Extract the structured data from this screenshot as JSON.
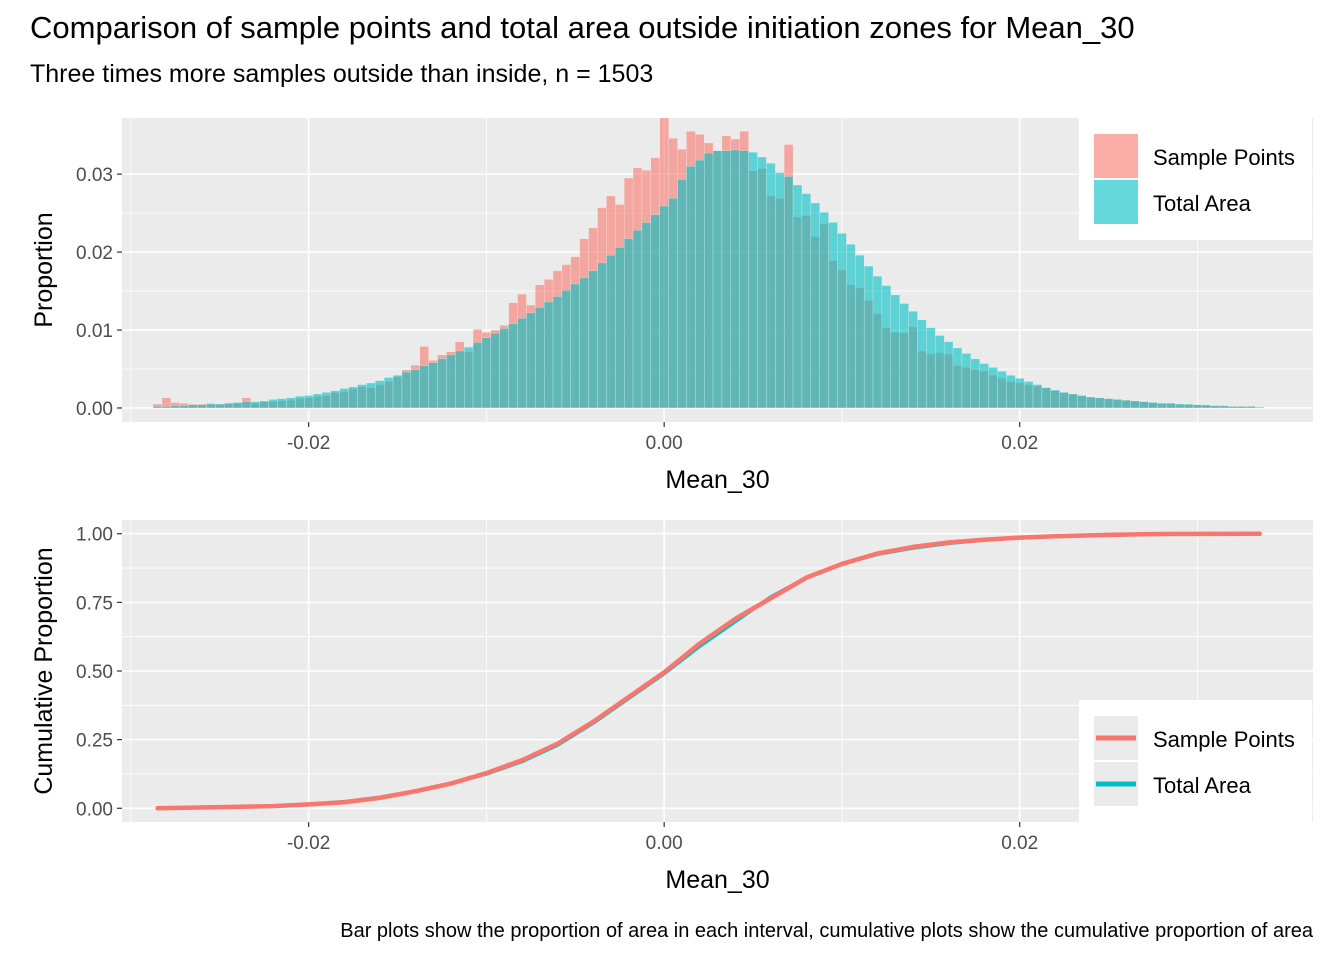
{
  "title": "Comparison of sample points and total area outside initiation zones for Mean_30",
  "subtitle": "Three times more samples outside than inside, n = 1503",
  "caption": "Bar plots show the proportion of area in each interval, cumulative plots show the cumulative proportion of area",
  "colors": {
    "sample": "#F8766D",
    "total": "#00BFC4",
    "panel": "#EBEBEB",
    "grid": "#FFFFFF"
  },
  "chart_data": [
    {
      "type": "bar",
      "xlabel": "Mean_30",
      "ylabel": "Proportion",
      "xlim": [
        -0.0305,
        0.0365
      ],
      "ylim": [
        -0.0018,
        0.0372
      ],
      "x_ticks": [
        -0.02,
        0.0,
        0.02
      ],
      "x_tick_labels": [
        "-0.02",
        "0.00",
        "0.02"
      ],
      "y_ticks": [
        0.0,
        0.01,
        0.02,
        0.03
      ],
      "y_tick_labels": [
        "0.00",
        "0.01",
        "0.02",
        "0.03"
      ],
      "bin_width": 0.0005,
      "bin_start": -0.0285,
      "grid": true,
      "legend": {
        "position": "top-right",
        "entries": [
          "Sample Points",
          "Total Area"
        ]
      },
      "series": [
        {
          "name": "Sample Points",
          "fill_alpha": 0.6,
          "values": [
            0.0005,
            0.0013,
            0.0007,
            0.0006,
            0.0005,
            0.0005,
            0.0006,
            0.0005,
            0.0006,
            0.0006,
            0.0013,
            0.0006,
            0.0008,
            0.0008,
            0.0009,
            0.001,
            0.0012,
            0.0013,
            0.0015,
            0.0016,
            0.002,
            0.0021,
            0.0024,
            0.0027,
            0.0026,
            0.003,
            0.0034,
            0.004,
            0.0049,
            0.0055,
            0.0079,
            0.0061,
            0.0068,
            0.0072,
            0.0085,
            0.0072,
            0.0101,
            0.0097,
            0.01,
            0.0106,
            0.0135,
            0.0146,
            0.0132,
            0.0158,
            0.0165,
            0.0176,
            0.0184,
            0.0194,
            0.0217,
            0.0231,
            0.0257,
            0.0272,
            0.0261,
            0.0295,
            0.0308,
            0.0305,
            0.0321,
            0.0372,
            0.0346,
            0.0332,
            0.0355,
            0.0351,
            0.034,
            0.033,
            0.0349,
            0.0345,
            0.0355,
            0.0304,
            0.0307,
            0.0272,
            0.0269,
            0.0338,
            0.0245,
            0.0247,
            0.022,
            0.0236,
            0.0189,
            0.0177,
            0.0158,
            0.0154,
            0.0138,
            0.0121,
            0.0103,
            0.0097,
            0.0096,
            0.0104,
            0.0073,
            0.0069,
            0.0071,
            0.0069,
            0.0054,
            0.0052,
            0.0049,
            0.0047,
            0.0042,
            0.0038,
            0.0034,
            0.0032,
            0.003,
            0.0028,
            0.0026,
            0.0022,
            0.002,
            0.0018,
            0.0016,
            0.0014,
            0.0013,
            0.0012,
            0.0011,
            0.001,
            0.0009,
            0.0008,
            0.0007,
            0.0006,
            0.0006,
            0.0005,
            0.0004,
            0.0004,
            0.0003,
            0.0003,
            0.0002,
            0.0002,
            0.0002,
            0.0002,
            0.0001
          ]
        },
        {
          "name": "Total Area",
          "fill_alpha": 0.6,
          "values": [
            0.0002,
            0.0002,
            0.0003,
            0.0003,
            0.0004,
            0.0004,
            0.0005,
            0.0005,
            0.0006,
            0.0007,
            0.0008,
            0.0008,
            0.0009,
            0.0011,
            0.0012,
            0.0013,
            0.0015,
            0.0016,
            0.0018,
            0.002,
            0.0022,
            0.0025,
            0.0027,
            0.003,
            0.0032,
            0.0035,
            0.0039,
            0.0042,
            0.0046,
            0.0049,
            0.0054,
            0.0058,
            0.0063,
            0.0068,
            0.0073,
            0.0078,
            0.0084,
            0.009,
            0.0096,
            0.0102,
            0.0108,
            0.0115,
            0.0122,
            0.0129,
            0.0136,
            0.0143,
            0.0151,
            0.0159,
            0.0167,
            0.0176,
            0.0186,
            0.0196,
            0.0206,
            0.0217,
            0.0228,
            0.0238,
            0.0248,
            0.0259,
            0.0269,
            0.0293,
            0.031,
            0.0318,
            0.0327,
            0.033,
            0.033,
            0.0331,
            0.033,
            0.0328,
            0.0322,
            0.0314,
            0.0302,
            0.0297,
            0.0286,
            0.0275,
            0.0263,
            0.0251,
            0.0238,
            0.0224,
            0.021,
            0.0196,
            0.0182,
            0.0169,
            0.0157,
            0.0145,
            0.0134,
            0.0124,
            0.0113,
            0.0103,
            0.0093,
            0.0085,
            0.0077,
            0.007,
            0.0063,
            0.0057,
            0.0052,
            0.0047,
            0.0042,
            0.0038,
            0.0034,
            0.003,
            0.0026,
            0.0023,
            0.002,
            0.0018,
            0.0016,
            0.0014,
            0.0013,
            0.0012,
            0.0011,
            0.001,
            0.0009,
            0.0008,
            0.0007,
            0.0006,
            0.0006,
            0.0005,
            0.0005,
            0.0004,
            0.0004,
            0.0003,
            0.0003,
            0.0002,
            0.0002,
            0.0002,
            0.0001
          ]
        }
      ]
    },
    {
      "type": "line",
      "xlabel": "Mean_30",
      "ylabel": "Cumulative Proportion",
      "xlim": [
        -0.0305,
        0.0365
      ],
      "ylim": [
        -0.05,
        1.05
      ],
      "x_ticks": [
        -0.02,
        0.0,
        0.02
      ],
      "x_tick_labels": [
        "-0.02",
        "0.00",
        "0.02"
      ],
      "y_ticks": [
        0.0,
        0.25,
        0.5,
        0.75,
        1.0
      ],
      "y_tick_labels": [
        "0.00",
        "0.25",
        "0.50",
        "0.75",
        "1.00"
      ],
      "grid": true,
      "legend": {
        "position": "bottom-right",
        "entries": [
          "Sample Points",
          "Total Area"
        ]
      },
      "series": [
        {
          "name": "Total Area",
          "x": [
            -0.0285,
            -0.025,
            -0.022,
            -0.02,
            -0.018,
            -0.016,
            -0.014,
            -0.012,
            -0.01,
            -0.008,
            -0.006,
            -0.004,
            -0.002,
            0.0,
            0.002,
            0.004,
            0.006,
            0.008,
            0.01,
            0.012,
            0.014,
            0.016,
            0.018,
            0.02,
            0.022,
            0.025,
            0.028,
            0.032
          ],
          "y": [
            0.0,
            0.004,
            0.008,
            0.014,
            0.024,
            0.04,
            0.062,
            0.09,
            0.125,
            0.17,
            0.23,
            0.31,
            0.4,
            0.49,
            0.59,
            0.68,
            0.77,
            0.84,
            0.89,
            0.925,
            0.948,
            0.965,
            0.977,
            0.985,
            0.99,
            0.995,
            0.998,
            1.0
          ]
        },
        {
          "name": "Sample Points",
          "x": [
            -0.0285,
            -0.025,
            -0.022,
            -0.02,
            -0.018,
            -0.016,
            -0.014,
            -0.012,
            -0.01,
            -0.008,
            -0.006,
            -0.004,
            -0.002,
            0.0,
            0.002,
            0.004,
            0.006,
            0.008,
            0.01,
            0.012,
            0.014,
            0.016,
            0.018,
            0.02,
            0.022,
            0.025,
            0.028,
            0.0335
          ],
          "y": [
            0.0,
            0.004,
            0.008,
            0.014,
            0.022,
            0.038,
            0.062,
            0.09,
            0.128,
            0.175,
            0.235,
            0.315,
            0.405,
            0.495,
            0.6,
            0.69,
            0.765,
            0.84,
            0.89,
            0.928,
            0.952,
            0.968,
            0.978,
            0.986,
            0.991,
            0.996,
            0.999,
            1.0
          ]
        }
      ]
    }
  ]
}
